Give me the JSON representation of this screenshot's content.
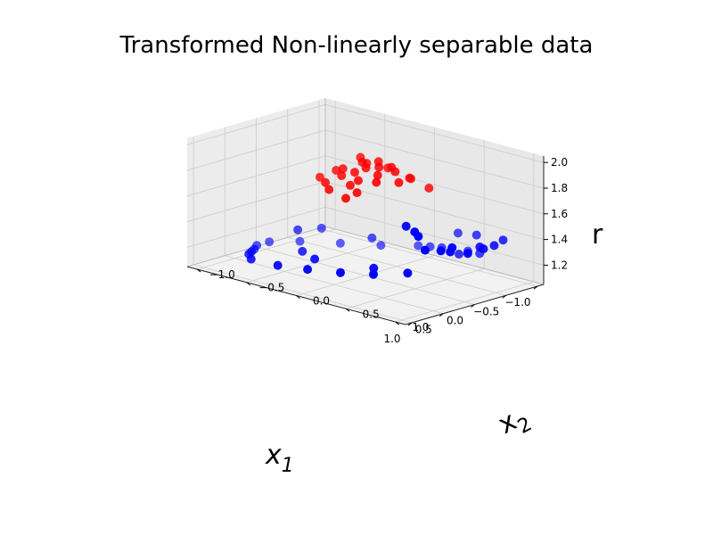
{
  "chart_data": {
    "type": "scatter",
    "title": "Transformed Non-linearly separable data",
    "xlabel": "x₁",
    "xlabel_base": "x",
    "xlabel_sub": "1",
    "ylabel": "x₂",
    "ylabel_base": "x",
    "ylabel_sub": "2",
    "zlabel": "r",
    "x_ticks": [
      "−1.0",
      "−0.5",
      "0.0",
      "0.5",
      "1.0"
    ],
    "y_ticks": [
      "−1.0",
      "−0.5",
      "0.0",
      "0.5",
      "1.0"
    ],
    "z_ticks": [
      "1.2",
      "1.4",
      "1.6",
      "1.8",
      "2.0"
    ],
    "xlim": [
      -1.1,
      1.1
    ],
    "ylim": [
      -1.1,
      1.1
    ],
    "zlim": [
      1.05,
      2.05
    ],
    "grid": true,
    "colors": {
      "inner": "#ff0000",
      "outer": "#0000ff",
      "pane": "#f2f2f2"
    },
    "series": [
      {
        "color": "#ff0000",
        "points": [
          [
            0.1,
            0.2,
            1.95
          ],
          [
            0.15,
            0.1,
            1.93
          ],
          [
            0.0,
            0.3,
            1.92
          ],
          [
            0.2,
            0.25,
            1.91
          ],
          [
            -0.1,
            0.2,
            1.92
          ],
          [
            0.25,
            0.05,
            1.9
          ],
          [
            0.05,
            0.0,
            1.94
          ],
          [
            -0.05,
            0.1,
            1.95
          ],
          [
            0.3,
            0.3,
            1.88
          ],
          [
            0.1,
            0.4,
            1.87
          ],
          [
            -0.15,
            0.35,
            1.86
          ],
          [
            0.2,
            -0.1,
            1.89
          ],
          [
            0.35,
            0.15,
            1.87
          ],
          [
            -0.2,
            0.1,
            1.88
          ],
          [
            0.0,
            -0.05,
            1.96
          ],
          [
            0.3,
            -0.05,
            1.86
          ],
          [
            0.15,
            -0.2,
            1.85
          ],
          [
            -0.1,
            -0.05,
            1.9
          ],
          [
            0.4,
            0.1,
            1.83
          ],
          [
            0.45,
            0.2,
            1.8
          ],
          [
            -0.25,
            0.3,
            1.83
          ],
          [
            0.4,
            -0.15,
            1.8
          ],
          [
            0.5,
            -0.05,
            1.78
          ],
          [
            -0.3,
            0.45,
            1.78
          ],
          [
            0.25,
            -0.3,
            1.79
          ],
          [
            0.55,
            0.15,
            1.76
          ]
        ]
      },
      {
        "color": "#0000ff",
        "points": [
          [
            -0.95,
            0.55,
            1.2
          ],
          [
            -1.0,
            0.4,
            1.18
          ],
          [
            -0.9,
            0.2,
            1.18
          ],
          [
            -0.7,
            0.5,
            1.22
          ],
          [
            -0.95,
            0.05,
            1.15
          ],
          [
            -1.0,
            -0.1,
            1.12
          ],
          [
            -0.8,
            -0.35,
            1.1
          ],
          [
            -0.55,
            -0.6,
            1.1
          ],
          [
            -0.3,
            -0.85,
            1.1
          ],
          [
            -0.05,
            -1.0,
            1.1
          ],
          [
            0.15,
            -1.0,
            1.1
          ],
          [
            0.35,
            -0.9,
            1.12
          ],
          [
            0.55,
            -0.8,
            1.15
          ],
          [
            0.75,
            -0.7,
            1.18
          ],
          [
            0.95,
            -0.55,
            1.2
          ],
          [
            1.0,
            -0.25,
            1.22
          ],
          [
            1.0,
            0.05,
            1.25
          ],
          [
            0.95,
            0.35,
            1.28
          ],
          [
            0.9,
            0.65,
            1.32
          ],
          [
            0.75,
            0.9,
            1.36
          ],
          [
            -0.55,
            0.95,
            1.4
          ],
          [
            -0.4,
            0.9,
            1.4
          ],
          [
            -0.3,
            1.0,
            1.42
          ],
          [
            -0.05,
            1.0,
            1.42
          ],
          [
            0.15,
            0.95,
            1.45
          ],
          [
            0.3,
            0.95,
            1.48
          ],
          [
            0.2,
            1.0,
            1.5
          ],
          [
            0.55,
            0.95,
            1.52
          ],
          [
            -0.85,
            0.85,
            1.38
          ],
          [
            -1.0,
            0.3,
            1.3
          ],
          [
            -0.9,
            0.55,
            1.35
          ],
          [
            0.5,
            0.4,
            1.26
          ],
          [
            0.3,
            0.6,
            1.6
          ],
          [
            0.4,
            0.75,
            1.6
          ],
          [
            0.5,
            0.85,
            1.6
          ],
          [
            -0.25,
            -0.6,
            1.26
          ],
          [
            0.05,
            -0.65,
            1.28
          ],
          [
            -0.5,
            -0.25,
            1.22
          ],
          [
            0.45,
            -0.35,
            1.23
          ],
          [
            0.65,
            -0.1,
            1.25
          ]
        ]
      }
    ]
  }
}
